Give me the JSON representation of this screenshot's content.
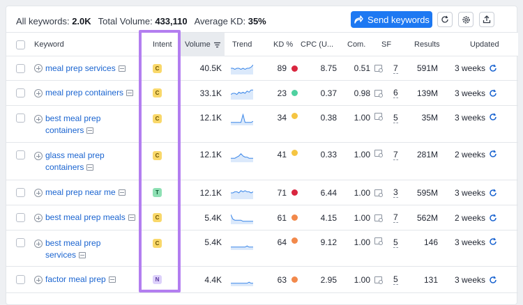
{
  "summary": {
    "all_keywords_label": "All keywords:",
    "all_keywords_value": "2.0K",
    "total_volume_label": "Total Volume:",
    "total_volume_value": "433,110",
    "average_kd_label": "Average KD:",
    "average_kd_value": "35%"
  },
  "toolbar": {
    "send_keywords_label": "Send keywords",
    "icons": [
      "send-arrow-icon",
      "refresh-icon",
      "settings-icon",
      "export-icon"
    ]
  },
  "columns": {
    "keyword": "Keyword",
    "intent": "Intent",
    "volume": "Volume",
    "trend": "Trend",
    "kd": "KD %",
    "cpc": "CPC (U...",
    "com": "Com.",
    "sf": "SF",
    "results": "Results",
    "updated": "Updated"
  },
  "intent_colors": {
    "C": {
      "bg": "#f9d86a",
      "fg": "#6b5200"
    },
    "T": {
      "bg": "#8ee0b4",
      "fg": "#0d5a33"
    },
    "N": {
      "bg": "#ddd1fb",
      "fg": "#5a3aa0"
    }
  },
  "kd_colors": {
    "red": "#d9263f",
    "green": "#4fd1a0",
    "yellow": "#f5c542",
    "orange": "#f2894b"
  },
  "rows": [
    {
      "keyword_line1": "meal prep services",
      "keyword_line2": "",
      "intent": "C",
      "volume": "40.5K",
      "trend": [
        5,
        5,
        4,
        5,
        5,
        4,
        5,
        4,
        5,
        5,
        6,
        8
      ],
      "kd": "89",
      "kd_color": "red",
      "cpc": "8.75",
      "com": "0.51",
      "sf": "7",
      "results": "591M",
      "updated": "3 weeks"
    },
    {
      "keyword_line1": "meal prep containers",
      "keyword_line2": "",
      "intent": "C",
      "volume": "33.1K",
      "trend": [
        4,
        5,
        5,
        4,
        6,
        5,
        6,
        5,
        7,
        6,
        8,
        8
      ],
      "kd": "23",
      "kd_color": "green",
      "cpc": "0.37",
      "com": "0.98",
      "sf": "6",
      "results": "139M",
      "updated": "3 weeks"
    },
    {
      "keyword_line1": "best meal prep",
      "keyword_line2": "containers",
      "intent": "C",
      "volume": "12.1K",
      "trend": [
        2,
        2,
        2,
        2,
        2,
        2,
        9,
        2,
        2,
        2,
        2,
        3
      ],
      "kd": "34",
      "kd_color": "yellow",
      "cpc": "0.38",
      "com": "1.00",
      "sf": "5",
      "results": "35M",
      "updated": "3 weeks"
    },
    {
      "keyword_line1": "glass meal prep",
      "keyword_line2": "containers",
      "intent": "C",
      "volume": "12.1K",
      "trend": [
        3,
        3,
        3,
        4,
        5,
        7,
        5,
        4,
        4,
        3,
        3,
        3
      ],
      "kd": "41",
      "kd_color": "yellow",
      "cpc": "0.33",
      "com": "1.00",
      "sf": "7",
      "results": "281M",
      "updated": "2 weeks"
    },
    {
      "keyword_line1": "meal prep near me",
      "keyword_line2": "",
      "intent": "T",
      "volume": "12.1K",
      "trend": [
        5,
        5,
        6,
        6,
        5,
        7,
        6,
        7,
        6,
        6,
        5,
        6
      ],
      "kd": "71",
      "kd_color": "red",
      "cpc": "6.44",
      "com": "1.00",
      "sf": "3",
      "results": "595M",
      "updated": "3 weeks"
    },
    {
      "keyword_line1": "best meal prep meals",
      "keyword_line2": "",
      "intent": "C",
      "volume": "5.4K",
      "trend": [
        8,
        4,
        3,
        3,
        3,
        3,
        2,
        2,
        2,
        2,
        2,
        2
      ],
      "kd": "61",
      "kd_color": "orange",
      "cpc": "4.15",
      "com": "1.00",
      "sf": "7",
      "results": "562M",
      "updated": "2 weeks"
    },
    {
      "keyword_line1": "best meal prep",
      "keyword_line2": "services",
      "intent": "C",
      "volume": "5.4K",
      "trend": [
        2,
        2,
        2,
        2,
        2,
        2,
        2,
        2,
        3,
        2,
        2,
        2
      ],
      "kd": "64",
      "kd_color": "orange",
      "cpc": "9.12",
      "com": "1.00",
      "sf": "5",
      "results": "146",
      "updated": "3 weeks"
    },
    {
      "keyword_line1": "factor meal prep",
      "keyword_line2": "",
      "intent": "N",
      "volume": "4.4K",
      "trend": [
        2,
        2,
        2,
        2,
        2,
        2,
        2,
        2,
        2,
        3,
        2,
        2
      ],
      "kd": "63",
      "kd_color": "orange",
      "cpc": "2.95",
      "com": "1.00",
      "sf": "5",
      "results": "131",
      "updated": "3 weeks"
    }
  ],
  "highlight_color": "#b37ef0"
}
